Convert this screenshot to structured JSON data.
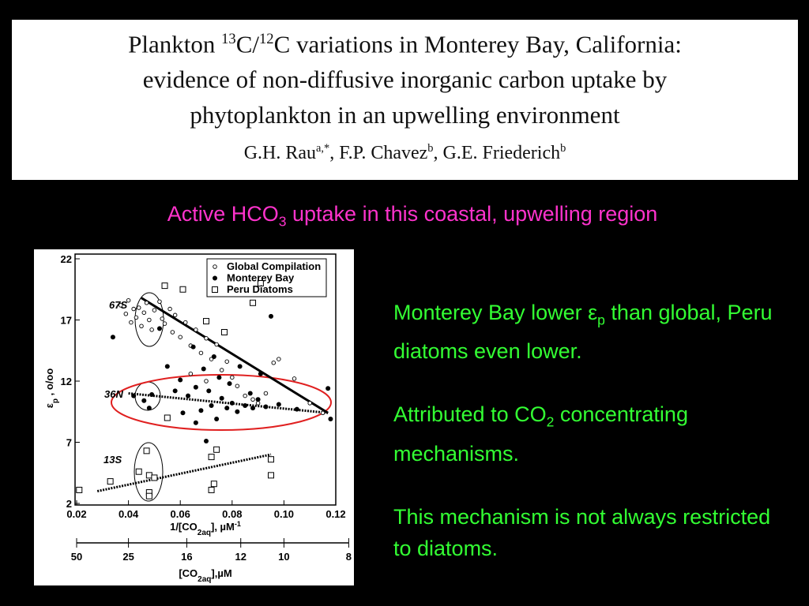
{
  "header": {
    "title_lines": [
      [
        "Plankton ",
        "13",
        "C/",
        "12",
        "C variations in Monterey Bay, California:"
      ],
      [
        "evidence of non-diffusive inorganic carbon uptake by"
      ],
      [
        "phytoplankton in an upwelling environment"
      ]
    ],
    "authors": [
      "G.H. Rau",
      "a,*",
      ", F.P. Chavez",
      "b",
      ", G.E. Friederich",
      "b"
    ]
  },
  "subtitle": [
    "Active HCO",
    "3",
    " uptake in this coastal, upwelling region"
  ],
  "bullets": [
    [
      "Monterey Bay lower ",
      "ε",
      "p",
      " than global, Peru diatoms even lower."
    ],
    [
      "Attributed to CO",
      "2",
      " concentrating mechanisms."
    ],
    [
      "This mechanism is not always restricted to diatoms."
    ]
  ],
  "chart_data": {
    "type": "scatter",
    "xlabel": [
      "1/[CO",
      "2aq",
      "], µM",
      "-1"
    ],
    "ylabel": [
      "ε",
      "p",
      " , o/oo"
    ],
    "x2label": [
      "[CO",
      "2aq",
      "],µM"
    ],
    "xlim": [
      0.02,
      0.12
    ],
    "ylim": [
      2,
      22
    ],
    "xticks": [
      0.02,
      0.04,
      0.06,
      0.08,
      {
        "value": 0.1,
        "label": "0.10"
      },
      0.12
    ],
    "yticks": [
      2,
      7,
      12,
      17,
      22
    ],
    "x2scale": "reciprocal",
    "x2ticks": [
      50,
      25,
      16,
      12,
      10,
      8
    ],
    "annotations": [
      "67S",
      "36N",
      "13S"
    ],
    "series": [
      {
        "name": "Global Compilation",
        "color": "#000000",
        "marker": "circle-open-small",
        "x": [
          0.037,
          0.039,
          0.04,
          0.041,
          0.042,
          0.043,
          0.044,
          0.045,
          0.046,
          0.047,
          0.048,
          0.049,
          0.05,
          0.052,
          0.053,
          0.054,
          0.056,
          0.057,
          0.058,
          0.06,
          0.062,
          0.064,
          0.066,
          0.068,
          0.07,
          0.072,
          0.074,
          0.076,
          0.078,
          0.08,
          0.082,
          0.085,
          0.088,
          0.09,
          0.093,
          0.096,
          0.098,
          0.104,
          0.11,
          0.115,
          0.064,
          0.07
        ],
        "values": [
          18.2,
          17.5,
          18.6,
          16.8,
          17.9,
          17.2,
          18.0,
          16.5,
          17.6,
          18.4,
          17.0,
          16.2,
          17.8,
          18.5,
          17.1,
          16.7,
          17.9,
          16.0,
          17.4,
          15.6,
          16.8,
          14.9,
          16.2,
          14.3,
          15.5,
          13.8,
          15.0,
          12.9,
          13.6,
          12.3,
          11.6,
          10.8,
          10.5,
          10.2,
          11.0,
          13.5,
          13.8,
          12.2,
          10.2,
          9.4,
          12.6,
          12.0
        ]
      },
      {
        "name": "Monterey Bay",
        "color": "#000000",
        "marker": "circle",
        "x": [
          0.034,
          0.042,
          0.046,
          0.049,
          0.048,
          0.052,
          0.055,
          0.058,
          0.06,
          0.061,
          0.063,
          0.065,
          0.066,
          0.068,
          0.069,
          0.071,
          0.072,
          0.073,
          0.074,
          0.075,
          0.076,
          0.078,
          0.079,
          0.08,
          0.082,
          0.083,
          0.085,
          0.087,
          0.088,
          0.09,
          0.091,
          0.093,
          0.095,
          0.098,
          0.105,
          0.117,
          0.118,
          0.07,
          0.066
        ],
        "values": [
          15.6,
          10.8,
          10.4,
          10.9,
          9.8,
          16.3,
          13.2,
          11.2,
          12.1,
          9.4,
          10.8,
          14.8,
          11.5,
          9.6,
          13.0,
          11.2,
          10.0,
          14.0,
          8.9,
          12.3,
          10.6,
          9.8,
          11.8,
          10.2,
          9.5,
          13.2,
          10.0,
          11.0,
          9.8,
          10.5,
          12.6,
          9.9,
          17.3,
          10.1,
          9.7,
          11.4,
          8.9,
          7.1,
          8.6
        ]
      },
      {
        "name": "Peru Diatoms",
        "color": "#000000",
        "marker": "square-open",
        "x": [
          0.021,
          0.033,
          0.044,
          0.047,
          0.048,
          0.05,
          0.048,
          0.048,
          0.054,
          0.061,
          0.055,
          0.07,
          0.072,
          0.074,
          0.073,
          0.072,
          0.088,
          0.091,
          0.095,
          0.095,
          0.077
        ],
        "values": [
          3.1,
          3.8,
          4.6,
          6.3,
          4.3,
          4.1,
          2.9,
          2.6,
          19.8,
          19.5,
          9.0,
          16.9,
          5.8,
          6.4,
          3.6,
          3.1,
          18.4,
          20.0,
          5.6,
          4.3,
          16.0
        ]
      }
    ],
    "lines": [
      {
        "x": [
          0.045,
          0.117
        ],
        "values": [
          18.8,
          9.4
        ],
        "dash": "solid"
      },
      {
        "x": [
          0.04,
          0.117
        ],
        "values": [
          11.0,
          9.4
        ],
        "dash": "dotted"
      },
      {
        "x": [
          0.028,
          0.095
        ],
        "values": [
          3.0,
          6.0
        ],
        "dash": "dotted"
      }
    ],
    "legend": "top-right"
  }
}
